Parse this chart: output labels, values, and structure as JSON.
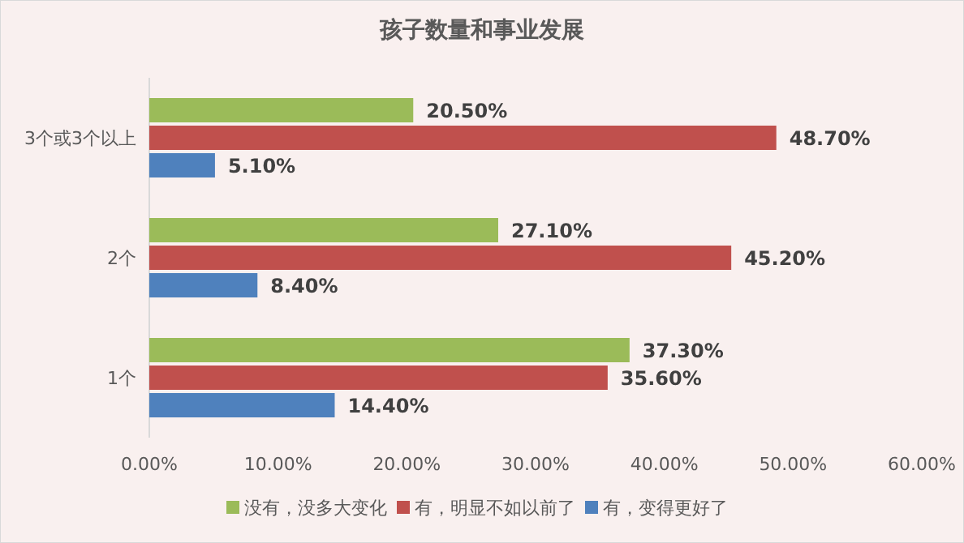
{
  "chart_data": {
    "type": "bar",
    "orientation": "horizontal",
    "title": "孩子数量和事业发展",
    "categories": [
      "3个或3个以上",
      "2个",
      "1个"
    ],
    "series": [
      {
        "name": "没有，没多大变化",
        "color": "#9bbb59",
        "values": [
          20.5,
          27.1,
          37.3
        ],
        "value_labels": [
          "20.50%",
          "27.10%",
          "37.30%"
        ]
      },
      {
        "name": "有，明显不如以前了",
        "color": "#c0504d",
        "values": [
          48.7,
          45.2,
          35.6
        ],
        "value_labels": [
          "48.70%",
          "45.20%",
          "35.60%"
        ]
      },
      {
        "name": "有，变得更好了",
        "color": "#4f81bd",
        "values": [
          5.1,
          8.4,
          14.4
        ],
        "value_labels": [
          "5.10%",
          "8.40%",
          "14.40%"
        ]
      }
    ],
    "xlim": [
      0,
      60
    ],
    "xticks": [
      {
        "value": 0,
        "label": "0.00%"
      },
      {
        "value": 10,
        "label": "10.00%"
      },
      {
        "value": 20,
        "label": "20.00%"
      },
      {
        "value": 30,
        "label": "30.00%"
      },
      {
        "value": 40,
        "label": "40.00%"
      },
      {
        "value": 50,
        "label": "50.00%"
      },
      {
        "value": 60,
        "label": "60.00%"
      }
    ],
    "legend": "bottom"
  }
}
